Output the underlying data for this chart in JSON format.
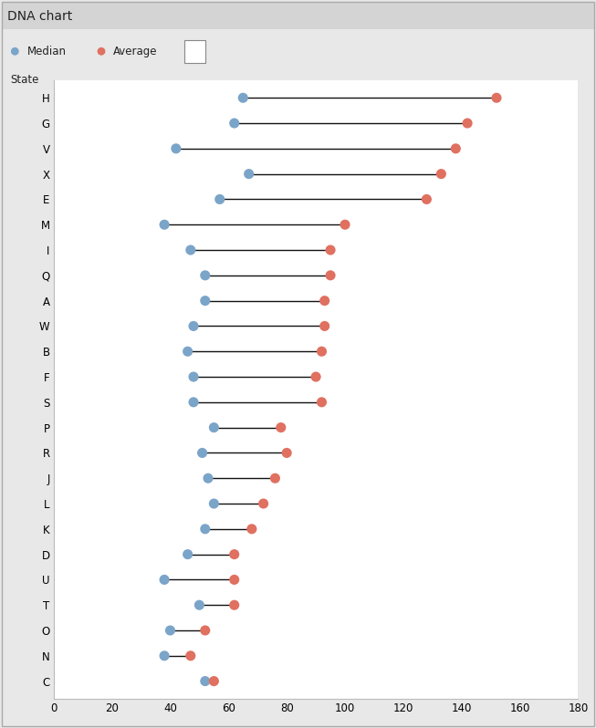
{
  "title": "DNA chart",
  "ylabel": "State",
  "xlim": [
    0,
    180
  ],
  "xticks": [
    0,
    20,
    40,
    60,
    80,
    100,
    120,
    140,
    160,
    180
  ],
  "categories": [
    "H",
    "G",
    "V",
    "X",
    "E",
    "M",
    "I",
    "Q",
    "A",
    "W",
    "B",
    "F",
    "S",
    "P",
    "R",
    "J",
    "L",
    "K",
    "D",
    "U",
    "T",
    "O",
    "N",
    "C"
  ],
  "median": [
    65,
    62,
    42,
    67,
    57,
    38,
    47,
    52,
    52,
    48,
    46,
    48,
    48,
    55,
    51,
    53,
    55,
    52,
    46,
    38,
    50,
    40,
    38,
    52
  ],
  "average": [
    152,
    142,
    138,
    133,
    128,
    100,
    95,
    95,
    93,
    93,
    92,
    90,
    92,
    78,
    80,
    76,
    72,
    68,
    62,
    62,
    62,
    52,
    47,
    55
  ],
  "median_color": "#7ba4c9",
  "average_color": "#e07060",
  "line_color": "#111111",
  "outer_bg_color": "#e8e8e8",
  "plot_bg_color": "#ffffff",
  "title_bar_color": "#d4d4d4",
  "border_color": "#aaaaaa",
  "marker_size": 8,
  "title_fontsize": 10,
  "tick_fontsize": 8.5,
  "label_fontsize": 8.5,
  "legend_fontsize": 8.5
}
